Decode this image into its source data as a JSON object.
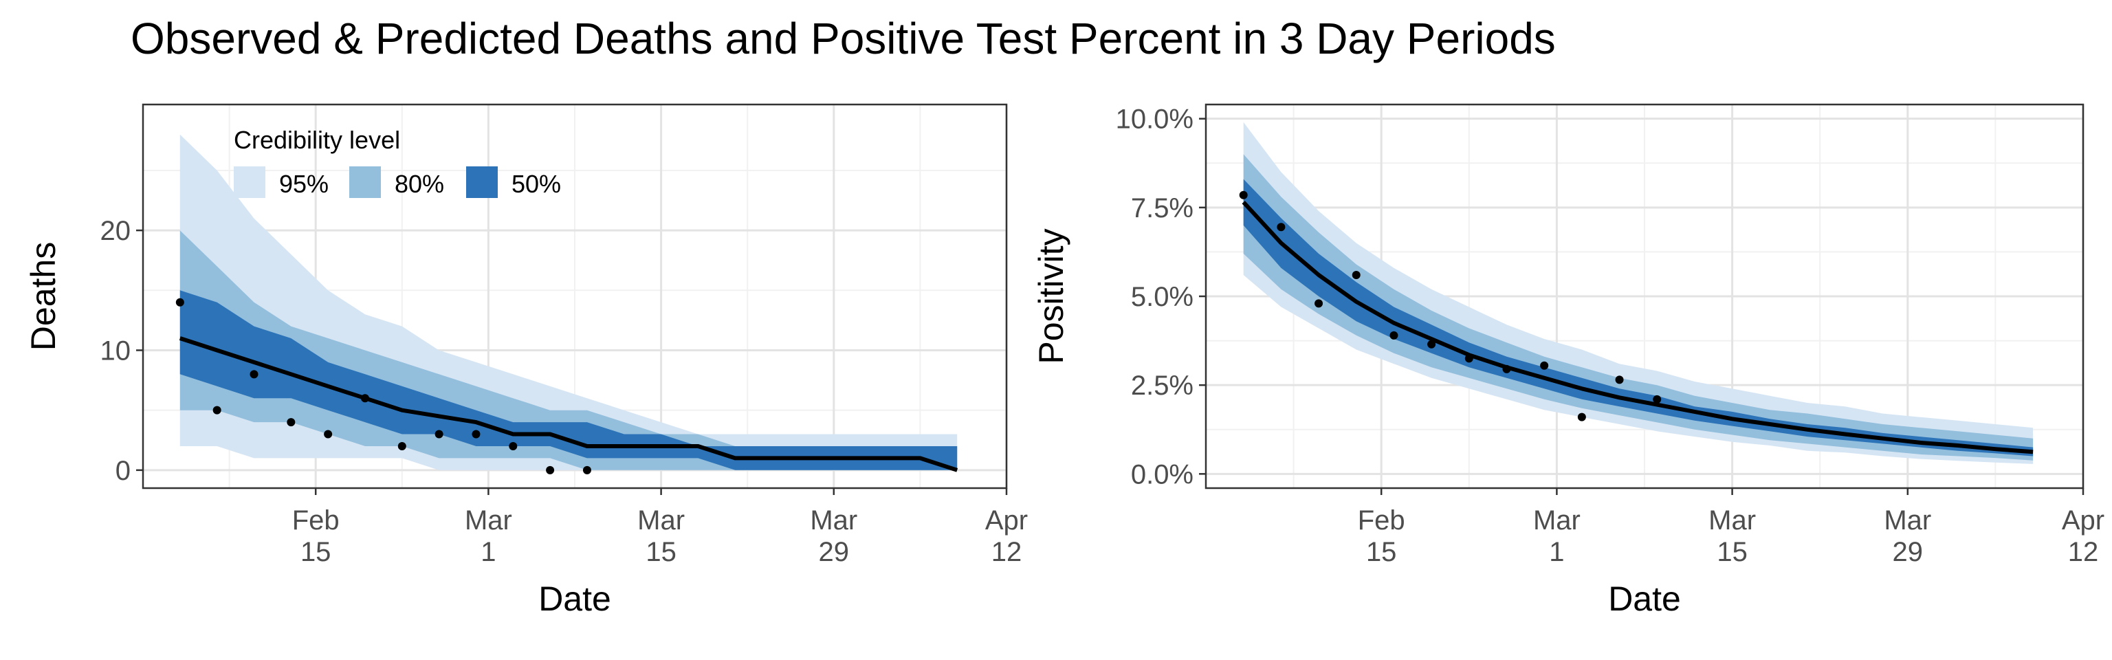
{
  "title": "Observed & Predicted Deaths and Positive Test Percent in 3 Day Periods",
  "colors": {
    "ci95": "#d6e5f4",
    "ci80": "#93bfdd",
    "ci50": "#2c73b8",
    "median": "#000000",
    "grid_major": "#e3e3e3",
    "grid_minor": "#f1f1f1",
    "axis_text": "#4d4d4d"
  },
  "chart_data": [
    {
      "type": "area",
      "xlabel": "Date",
      "ylabel": "Deaths",
      "ylim": [
        -1.5,
        30.5
      ],
      "xlim": [
        "2021-02-01",
        "2021-04-12"
      ],
      "x_ticks": [
        {
          "date": "2021-02-15",
          "month": "Feb",
          "day": "15"
        },
        {
          "date": "2021-03-01",
          "month": "Mar",
          "day": "1"
        },
        {
          "date": "2021-03-15",
          "month": "Mar",
          "day": "15"
        },
        {
          "date": "2021-03-29",
          "month": "Mar",
          "day": "29"
        },
        {
          "date": "2021-04-12",
          "month": "Apr",
          "day": "12"
        }
      ],
      "y_ticks": [
        {
          "value": 0,
          "label": "0"
        },
        {
          "value": 10,
          "label": "10"
        },
        {
          "value": 20,
          "label": "20"
        }
      ],
      "grid": true,
      "legend": {
        "title": "Credibility level",
        "position": "top-left",
        "items": [
          "95%",
          "80%",
          "50%"
        ]
      },
      "bands": {
        "x": [
          "2021-02-04",
          "2021-02-07",
          "2021-02-10",
          "2021-02-13",
          "2021-02-16",
          "2021-02-19",
          "2021-02-22",
          "2021-02-25",
          "2021-02-28",
          "2021-03-03",
          "2021-03-06",
          "2021-03-09",
          "2021-03-12",
          "2021-03-15",
          "2021-03-18",
          "2021-03-21",
          "2021-03-24",
          "2021-03-27",
          "2021-03-30",
          "2021-04-02",
          "2021-04-05",
          "2021-04-08"
        ],
        "upper95": [
          28,
          25,
          21,
          18,
          15,
          13,
          12,
          10,
          9,
          8,
          7,
          6,
          5,
          4,
          3,
          3,
          3,
          3,
          3,
          3,
          3,
          3
        ],
        "lower95": [
          2,
          2,
          1,
          1,
          1,
          1,
          1,
          0,
          0,
          0,
          0,
          0,
          0,
          0,
          0,
          0,
          0,
          0,
          0,
          0,
          0,
          0
        ],
        "upper80": [
          20,
          17,
          14,
          12,
          11,
          10,
          9,
          8,
          7,
          6,
          5,
          5,
          4,
          3,
          3,
          2,
          2,
          2,
          2,
          2,
          2,
          2
        ],
        "lower80": [
          5,
          5,
          4,
          4,
          3,
          2,
          2,
          1,
          1,
          1,
          1,
          0,
          0,
          0,
          0,
          0,
          0,
          0,
          0,
          0,
          0,
          0
        ],
        "upper50": [
          15,
          14,
          12,
          11,
          9,
          8,
          7,
          6,
          5,
          4,
          4,
          4,
          3,
          3,
          2,
          2,
          2,
          2,
          2,
          2,
          2,
          2
        ],
        "lower50": [
          8,
          7,
          6,
          6,
          5,
          4,
          3,
          3,
          2,
          2,
          2,
          1,
          1,
          1,
          1,
          0,
          0,
          0,
          0,
          0,
          0,
          0
        ]
      },
      "median": {
        "x": [
          "2021-02-04",
          "2021-02-07",
          "2021-02-10",
          "2021-02-13",
          "2021-02-16",
          "2021-02-19",
          "2021-02-22",
          "2021-02-25",
          "2021-02-28",
          "2021-03-03",
          "2021-03-06",
          "2021-03-09",
          "2021-03-12",
          "2021-03-15",
          "2021-03-18",
          "2021-03-21",
          "2021-03-24",
          "2021-03-27",
          "2021-03-30",
          "2021-04-02",
          "2021-04-05",
          "2021-04-08"
        ],
        "y": [
          11,
          10,
          9,
          8,
          7,
          6,
          5,
          4.5,
          4,
          3,
          3,
          2,
          2,
          2,
          2,
          1,
          1,
          1,
          1,
          1,
          1,
          0
        ]
      },
      "observed": {
        "x": [
          "2021-02-04",
          "2021-02-07",
          "2021-02-10",
          "2021-02-13",
          "2021-02-16",
          "2021-02-19",
          "2021-02-22",
          "2021-02-25",
          "2021-02-28",
          "2021-03-03",
          "2021-03-06",
          "2021-03-09"
        ],
        "y": [
          14,
          5,
          8,
          4,
          3,
          6,
          2,
          3,
          3,
          2,
          0,
          0
        ]
      }
    },
    {
      "type": "area",
      "xlabel": "Date",
      "ylabel": "Positivity",
      "ylim": [
        -0.4,
        10.4
      ],
      "xlim": [
        "2021-02-01",
        "2021-04-12"
      ],
      "x_ticks": [
        {
          "date": "2021-02-15",
          "month": "Feb",
          "day": "15"
        },
        {
          "date": "2021-03-01",
          "month": "Mar",
          "day": "1"
        },
        {
          "date": "2021-03-15",
          "month": "Mar",
          "day": "15"
        },
        {
          "date": "2021-03-29",
          "month": "Mar",
          "day": "29"
        },
        {
          "date": "2021-04-12",
          "month": "Apr",
          "day": "12"
        }
      ],
      "y_ticks": [
        {
          "value": 0,
          "label": "0.0%"
        },
        {
          "value": 2.5,
          "label": "2.5%"
        },
        {
          "value": 5,
          "label": "5.0%"
        },
        {
          "value": 7.5,
          "label": "7.5%"
        },
        {
          "value": 10,
          "label": "10.0%"
        }
      ],
      "grid": true,
      "bands": {
        "x": [
          "2021-02-04",
          "2021-02-07",
          "2021-02-10",
          "2021-02-13",
          "2021-02-16",
          "2021-02-19",
          "2021-02-22",
          "2021-02-25",
          "2021-02-28",
          "2021-03-03",
          "2021-03-06",
          "2021-03-09",
          "2021-03-12",
          "2021-03-15",
          "2021-03-18",
          "2021-03-21",
          "2021-03-24",
          "2021-03-27",
          "2021-03-30",
          "2021-04-02",
          "2021-04-05",
          "2021-04-08"
        ],
        "upper95": [
          9.9,
          8.5,
          7.4,
          6.5,
          5.8,
          5.2,
          4.7,
          4.2,
          3.8,
          3.5,
          3.1,
          2.9,
          2.6,
          2.4,
          2.2,
          2.0,
          1.9,
          1.7,
          1.6,
          1.5,
          1.4,
          1.3
        ],
        "lower95": [
          5.6,
          4.7,
          4.1,
          3.5,
          3.1,
          2.7,
          2.4,
          2.1,
          1.8,
          1.6,
          1.4,
          1.2,
          1.05,
          0.9,
          0.8,
          0.65,
          0.6,
          0.5,
          0.42,
          0.37,
          0.32,
          0.28
        ],
        "upper80": [
          9.0,
          7.8,
          6.8,
          5.9,
          5.2,
          4.6,
          4.1,
          3.7,
          3.3,
          3.0,
          2.7,
          2.5,
          2.2,
          2.0,
          1.8,
          1.7,
          1.55,
          1.4,
          1.3,
          1.2,
          1.1,
          1.0
        ],
        "lower80": [
          6.2,
          5.2,
          4.5,
          3.9,
          3.4,
          3.0,
          2.7,
          2.4,
          2.1,
          1.85,
          1.65,
          1.45,
          1.25,
          1.1,
          0.95,
          0.85,
          0.75,
          0.65,
          0.55,
          0.5,
          0.45,
          0.38
        ],
        "upper50": [
          8.3,
          7.2,
          6.2,
          5.4,
          4.7,
          4.2,
          3.7,
          3.3,
          3.0,
          2.7,
          2.4,
          2.2,
          1.9,
          1.75,
          1.55,
          1.4,
          1.3,
          1.15,
          1.05,
          0.95,
          0.85,
          0.75
        ],
        "lower50": [
          7.0,
          5.8,
          5.0,
          4.3,
          3.8,
          3.4,
          3.0,
          2.7,
          2.4,
          2.1,
          1.9,
          1.7,
          1.5,
          1.35,
          1.2,
          1.05,
          0.95,
          0.85,
          0.75,
          0.65,
          0.58,
          0.5
        ]
      },
      "median": {
        "x": [
          "2021-02-04",
          "2021-02-07",
          "2021-02-10",
          "2021-02-13",
          "2021-02-16",
          "2021-02-19",
          "2021-02-22",
          "2021-02-25",
          "2021-02-28",
          "2021-03-03",
          "2021-03-06",
          "2021-03-09",
          "2021-03-12",
          "2021-03-15",
          "2021-03-18",
          "2021-03-21",
          "2021-03-24",
          "2021-03-27",
          "2021-03-30",
          "2021-04-02",
          "2021-04-05",
          "2021-04-08"
        ],
        "y": [
          7.65,
          6.5,
          5.6,
          4.85,
          4.25,
          3.8,
          3.35,
          3.0,
          2.7,
          2.4,
          2.15,
          1.95,
          1.75,
          1.55,
          1.4,
          1.25,
          1.12,
          1.0,
          0.88,
          0.8,
          0.7,
          0.62
        ]
      },
      "observed": {
        "x": [
          "2021-02-04",
          "2021-02-07",
          "2021-02-10",
          "2021-02-13",
          "2021-02-16",
          "2021-02-19",
          "2021-02-22",
          "2021-02-25",
          "2021-02-28",
          "2021-03-03",
          "2021-03-06",
          "2021-03-09",
          "2021-03-12"
        ],
        "y": [
          7.85,
          6.95,
          4.8,
          5.6,
          3.9,
          3.65,
          3.25,
          2.95,
          3.05,
          1.6,
          2.65,
          2.1,
          null
        ]
      }
    }
  ]
}
